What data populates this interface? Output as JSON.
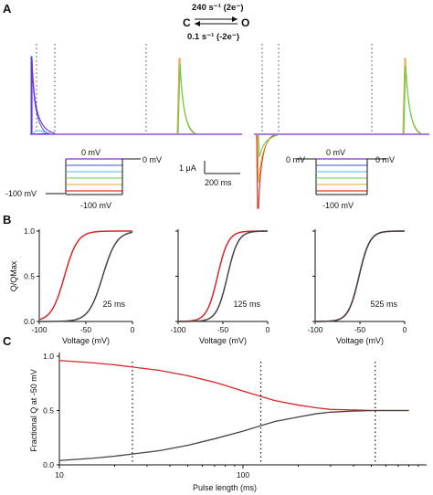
{
  "panels": {
    "A": "A",
    "B": "B",
    "C": "C"
  },
  "scheme": {
    "forward_rate": "240 s⁻¹ (2e⁻)",
    "closed_state": "C",
    "open_state": "O",
    "backward_rate": "0.1 s⁻¹ (-2e⁻)"
  },
  "protocol_left": {
    "top_label": "0 mV",
    "right_label": "0 mV",
    "left_label": "-100 mV",
    "bottom_label": "-100 mV"
  },
  "protocol_right": {
    "top_label": "0 mV",
    "left_label": "0 mV",
    "right_label": "0 mV",
    "bottom_label": "-100 mV"
  },
  "scalebar": {
    "current": "1 μA",
    "time": "200 ms"
  },
  "colors": {
    "red": "#d62728",
    "gray": "#444444",
    "step_colors": [
      "#7b2fd1",
      "#3a55d6",
      "#58b8e8",
      "#66cc44",
      "#e5a13a",
      "#d43a1f"
    ]
  },
  "chart_data": [
    {
      "type": "line",
      "panel": "B",
      "ylabel": "Q/QMax",
      "xlabel": "Voltage (mV)",
      "xlim": [
        -100,
        0
      ],
      "ylim": [
        0,
        1.0
      ],
      "xticks": [
        -100,
        -50,
        0
      ],
      "xtick_labels": [
        "-100",
        "-50",
        "0"
      ],
      "yticks": [
        0,
        0.5,
        1.0
      ],
      "ytick_labels": [
        "0.0",
        "0.5",
        "1.0"
      ],
      "annotation": "25 ms",
      "series": [
        {
          "color": "#d62728",
          "v_half": -73,
          "slope": 7
        },
        {
          "color": "#444444",
          "v_half": -32,
          "slope": 7.5
        }
      ]
    },
    {
      "type": "line",
      "panel": "B",
      "xlabel": "Voltage (mV)",
      "xlim": [
        -100,
        0
      ],
      "ylim": [
        0,
        1.0
      ],
      "xticks": [
        -100,
        -50,
        0
      ],
      "xtick_labels": [
        "-100",
        "-50",
        "0"
      ],
      "annotation": "125 ms",
      "series": [
        {
          "color": "#d62728",
          "v_half": -56,
          "slope": 6
        },
        {
          "color": "#444444",
          "v_half": -45,
          "slope": 6
        }
      ]
    },
    {
      "type": "line",
      "panel": "B",
      "xlabel": "Voltage (mV)",
      "xlim": [
        -100,
        0
      ],
      "ylim": [
        0,
        1.0
      ],
      "xticks": [
        -100,
        -50,
        0
      ],
      "xtick_labels": [
        "-100",
        "-50",
        "0"
      ],
      "annotation": "525 ms",
      "series": [
        {
          "color": "#d62728",
          "v_half": -51,
          "slope": 6
        },
        {
          "color": "#444444",
          "v_half": -51,
          "slope": 6
        }
      ]
    },
    {
      "type": "line",
      "panel": "C",
      "xlabel": "Pulse length (ms)",
      "ylabel": "Fractional Q at -50 mV",
      "x_scale": "log",
      "xlim": [
        10,
        1000
      ],
      "ylim": [
        0,
        1.0
      ],
      "xticks": [
        10,
        100
      ],
      "xtick_labels": [
        "10",
        "100"
      ],
      "yticks": [
        0,
        0.5,
        1.0
      ],
      "ytick_labels": [
        "0.0",
        "0.5",
        "1.0"
      ],
      "vlines": [
        25,
        125,
        525
      ],
      "series": [
        {
          "color": "#d62728",
          "x": [
            10,
            15,
            20,
            25,
            35,
            50,
            70,
            100,
            125,
            150,
            200,
            250,
            300,
            400,
            525,
            650,
            800
          ],
          "y": [
            0.96,
            0.94,
            0.92,
            0.9,
            0.87,
            0.82,
            0.76,
            0.68,
            0.63,
            0.59,
            0.55,
            0.525,
            0.51,
            0.505,
            0.5,
            0.5,
            0.5
          ]
        },
        {
          "color": "#444444",
          "x": [
            10,
            15,
            20,
            25,
            35,
            50,
            70,
            100,
            125,
            150,
            200,
            250,
            300,
            400,
            525,
            650,
            800
          ],
          "y": [
            0.04,
            0.06,
            0.08,
            0.1,
            0.13,
            0.18,
            0.24,
            0.31,
            0.36,
            0.4,
            0.44,
            0.47,
            0.485,
            0.495,
            0.5,
            0.5,
            0.5
          ]
        }
      ]
    }
  ]
}
